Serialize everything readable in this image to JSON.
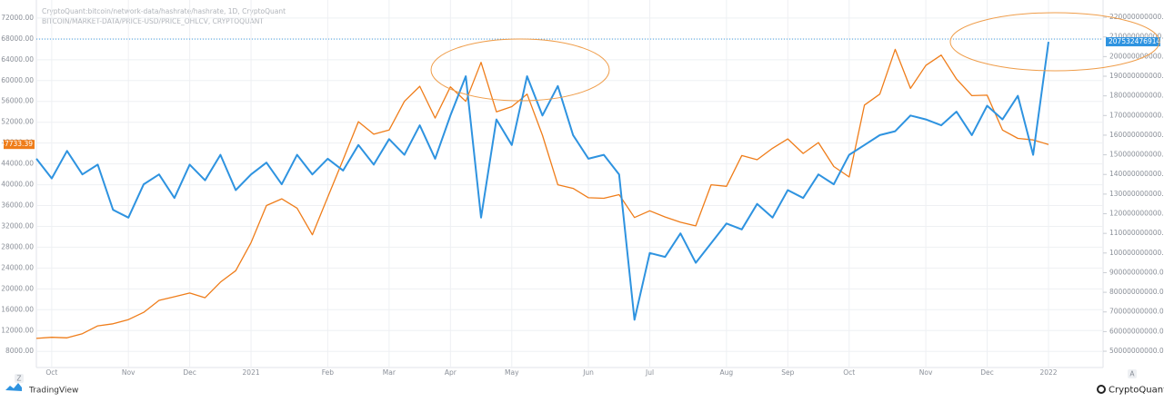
{
  "chart_data": {
    "type": "line",
    "categories": [
      null,
      "Oct",
      null,
      null,
      null,
      null,
      "Nov",
      null,
      null,
      null,
      "Dec",
      null,
      null,
      null,
      "2021",
      null,
      null,
      null,
      null,
      "Feb",
      null,
      null,
      null,
      "Mar",
      null,
      null,
      null,
      "Apr",
      null,
      null,
      null,
      "May",
      null,
      null,
      null,
      null,
      "Jun",
      null,
      null,
      null,
      "Jul",
      null,
      null,
      null,
      null,
      "Aug",
      null,
      null,
      null,
      "Sep",
      null,
      null,
      null,
      "Oct",
      null,
      null,
      null,
      null,
      "Nov",
      null,
      null,
      null,
      "Dec",
      null,
      null,
      null,
      "2022"
    ],
    "series": [
      {
        "name": "BITCOIN/MARKET-DATA/PRICE-USD/PRICE_OHLCV, CRYPTOQUANT",
        "color": "#ef7d1a",
        "axis": "y",
        "values": [
          10500,
          10700,
          10600,
          11400,
          12900,
          13300,
          14100,
          15500,
          17800,
          18500,
          19200,
          18300,
          21300,
          23500,
          28900,
          36000,
          37300,
          35500,
          30400,
          37600,
          44800,
          52100,
          49700,
          50500,
          56000,
          58900,
          52800,
          58800,
          56000,
          63500,
          54000,
          55000,
          57400,
          49500,
          40000,
          39300,
          37500,
          37400,
          38100,
          33700,
          35000,
          33800,
          32800,
          32100,
          40000,
          39700,
          45600,
          44800,
          47000,
          48800,
          46000,
          48100,
          43500,
          41500,
          55300,
          57400,
          66000,
          58500,
          62900,
          64900,
          60300,
          57100,
          57200,
          50500,
          48900,
          48600,
          47733.39
        ]
      },
      {
        "name": "CryptoQuant:bitcoin/network-data/hashrate/hashrate, 1D, CryptoQuant",
        "color": "#2e93e0",
        "axis": "y2",
        "values": [
          148000000000,
          138000000000,
          152000000000,
          140000000000,
          145000000000,
          122000000000,
          118000000000,
          135000000000,
          140000000000,
          128000000000,
          145000000000,
          137000000000,
          150000000000,
          132000000000,
          140000000000,
          146000000000,
          135000000000,
          150000000000,
          140000000000,
          148000000000,
          142000000000,
          155000000000,
          145000000000,
          158000000000,
          150000000000,
          165000000000,
          148000000000,
          170000000000,
          190000000000,
          118000000000,
          168000000000,
          155000000000,
          190000000000,
          170000000000,
          185000000000,
          160000000000,
          148000000000,
          150000000000,
          140000000000,
          66000000000,
          100000000000,
          98000000000,
          110000000000,
          95000000000,
          105000000000,
          115000000000,
          112000000000,
          125000000000,
          118000000000,
          132000000000,
          128000000000,
          140000000000,
          135000000000,
          150000000000,
          155000000000,
          160000000000,
          162000000000,
          170000000000,
          168000000000,
          165000000000,
          172000000000,
          160000000000,
          175000000000,
          168000000000,
          180000000000,
          150000000000,
          207532476914.88
        ]
      }
    ],
    "ylim": [
      4900,
      74600
    ],
    "yticks": [
      {
        "value": 72000,
        "label": "72000.00"
      },
      {
        "value": 68000,
        "label": "68000.00"
      },
      {
        "value": 64000,
        "label": "64000.00"
      },
      {
        "value": 60000,
        "label": "60000.00"
      },
      {
        "value": 56000,
        "label": "56000.00"
      },
      {
        "value": 52000,
        "label": "52000.00"
      },
      {
        "value": 48000,
        "label": "48000.00"
      },
      {
        "value": 44000,
        "label": "44000.00"
      },
      {
        "value": 40000,
        "label": "40000.00"
      },
      {
        "value": 36000,
        "label": "36000.00"
      },
      {
        "value": 32000,
        "label": "32000.00"
      },
      {
        "value": 28000,
        "label": "28000.00"
      },
      {
        "value": 24000,
        "label": "24000.00"
      },
      {
        "value": 20000,
        "label": "20000.00"
      },
      {
        "value": 16000,
        "label": "16000.00"
      },
      {
        "value": 12000,
        "label": "12000.00"
      },
      {
        "value": 8000,
        "label": "8000.00"
      }
    ],
    "y2lim": [
      41700000000,
      226500000000
    ],
    "y2ticks": [
      {
        "value": 220000000000,
        "label": "220000000000.00"
      },
      {
        "value": 210000000000,
        "label": "210000000000.00"
      },
      {
        "value": 200000000000,
        "label": "200000000000.00"
      },
      {
        "value": 190000000000,
        "label": "190000000000.00"
      },
      {
        "value": 180000000000,
        "label": "180000000000.00"
      },
      {
        "value": 170000000000,
        "label": "170000000000.00"
      },
      {
        "value": 160000000000,
        "label": "160000000000.00"
      },
      {
        "value": 150000000000,
        "label": "150000000000.00"
      },
      {
        "value": 140000000000,
        "label": "140000000000.00"
      },
      {
        "value": 130000000000,
        "label": "130000000000.00"
      },
      {
        "value": 120000000000,
        "label": "120000000000.00"
      },
      {
        "value": 110000000000,
        "label": "110000000000.00"
      },
      {
        "value": 100000000000,
        "label": "100000000000.00"
      },
      {
        "value": 90000000000,
        "label": "90000000000.00"
      },
      {
        "value": 80000000000,
        "label": "80000000000.00"
      },
      {
        "value": 70000000000,
        "label": "70000000000.00"
      },
      {
        "value": 60000000000,
        "label": "60000000000.00"
      },
      {
        "value": 50000000000,
        "label": "50000000000.00"
      }
    ],
    "grid": true,
    "branding": {
      "left": "TradingView",
      "right": "CryptoQuant",
      "left_button": "Z",
      "right_button": "A"
    }
  }
}
